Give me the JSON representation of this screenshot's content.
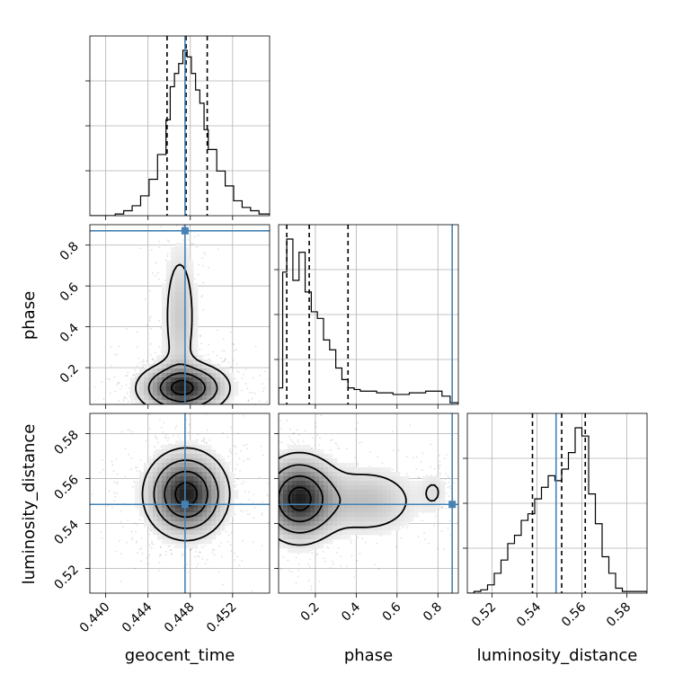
{
  "chart_data": {
    "type": "corner",
    "truth_color": "#4682b4",
    "contour_levels": [
      0.5,
      1.0,
      1.5,
      2.0
    ],
    "parameters": [
      {
        "name": "geocent_time",
        "label": "geocent_time",
        "range": [
          0.4385,
          0.4555
        ],
        "ticks": [
          0.44,
          0.444,
          0.448,
          0.452
        ],
        "tick_labels": [
          "0.440",
          "0.444",
          "0.448",
          "0.452"
        ],
        "truth": 0.4475,
        "quantiles": [
          0.4458,
          0.4476,
          0.4496
        ]
      },
      {
        "name": "phase",
        "label": "phase",
        "range": [
          0.02,
          0.9
        ],
        "ticks": [
          0.2,
          0.4,
          0.6,
          0.8
        ],
        "tick_labels": [
          "0.2",
          "0.4",
          "0.6",
          "0.8"
        ],
        "truth": 0.87,
        "quantiles": [
          0.06,
          0.17,
          0.36
        ]
      },
      {
        "name": "luminosity_distance",
        "label": "luminosity_distance",
        "range": [
          0.509,
          0.589
        ],
        "ticks": [
          0.52,
          0.54,
          0.56,
          0.58
        ],
        "tick_labels": [
          "0.52",
          "0.54",
          "0.56",
          "0.58"
        ],
        "truth": 0.5485,
        "quantiles": [
          0.538,
          0.551,
          0.5615
        ]
      }
    ],
    "histograms": [
      {
        "param": "geocent_time",
        "bin_edges": [
          0.4385,
          0.4393,
          0.4401,
          0.4409,
          0.4417,
          0.4425,
          0.4433,
          0.4441,
          0.4449,
          0.4457,
          0.4461,
          0.4465,
          0.4469,
          0.4473,
          0.4477,
          0.4481,
          0.4485,
          0.4489,
          0.4493,
          0.4497,
          0.4505,
          0.4513,
          0.4521,
          0.4529,
          0.4537,
          0.4545,
          0.4555
        ],
        "counts": [
          0,
          0,
          0,
          1,
          3,
          6,
          12,
          22,
          37,
          58,
          78,
          86,
          92,
          100,
          96,
          86,
          76,
          68,
          52,
          40,
          27,
          18,
          9,
          5,
          3,
          1
        ]
      },
      {
        "param": "phase",
        "bin_edges": [
          0.02,
          0.04,
          0.06,
          0.09,
          0.12,
          0.15,
          0.18,
          0.21,
          0.24,
          0.27,
          0.3,
          0.33,
          0.36,
          0.39,
          0.42,
          0.5,
          0.58,
          0.66,
          0.74,
          0.82,
          0.86,
          0.9
        ],
        "counts": [
          10,
          80,
          100,
          75,
          92,
          68,
          56,
          52,
          39,
          33,
          22,
          15,
          10,
          9,
          8,
          7,
          6,
          7,
          8,
          5,
          1
        ]
      },
      {
        "param": "luminosity_distance",
        "bin_edges": [
          0.509,
          0.512,
          0.515,
          0.518,
          0.521,
          0.524,
          0.527,
          0.53,
          0.533,
          0.536,
          0.539,
          0.542,
          0.545,
          0.548,
          0.551,
          0.554,
          0.557,
          0.56,
          0.563,
          0.566,
          0.569,
          0.572,
          0.575,
          0.578,
          0.589
        ],
        "counts": [
          0,
          1,
          2,
          5,
          12,
          20,
          30,
          35,
          44,
          48,
          57,
          64,
          71,
          68,
          75,
          85,
          100,
          95,
          60,
          42,
          22,
          12,
          3,
          1
        ]
      }
    ],
    "posterior_2d": [
      {
        "x": "geocent_time",
        "y": "phase",
        "modes": [
          {
            "mx": 0.4473,
            "my": 0.1,
            "sx": 0.0022,
            "sy": 0.065,
            "w": 1.0
          },
          {
            "mx": 0.447,
            "my": 0.45,
            "sx": 0.001,
            "sy": 0.22,
            "w": 0.25
          }
        ]
      },
      {
        "x": "geocent_time",
        "y": "luminosity_distance",
        "modes": [
          {
            "mx": 0.4476,
            "my": 0.553,
            "sx": 0.002,
            "sy": 0.01,
            "w": 1.0
          }
        ]
      },
      {
        "x": "phase",
        "y": "luminosity_distance",
        "modes": [
          {
            "mx": 0.12,
            "my": 0.551,
            "sx": 0.1,
            "sy": 0.01,
            "w": 1.0
          },
          {
            "mx": 0.45,
            "my": 0.55,
            "sx": 0.15,
            "sy": 0.009,
            "w": 0.28
          },
          {
            "mx": 0.78,
            "my": 0.554,
            "sx": 0.045,
            "sy": 0.006,
            "w": 0.12
          }
        ]
      }
    ]
  }
}
